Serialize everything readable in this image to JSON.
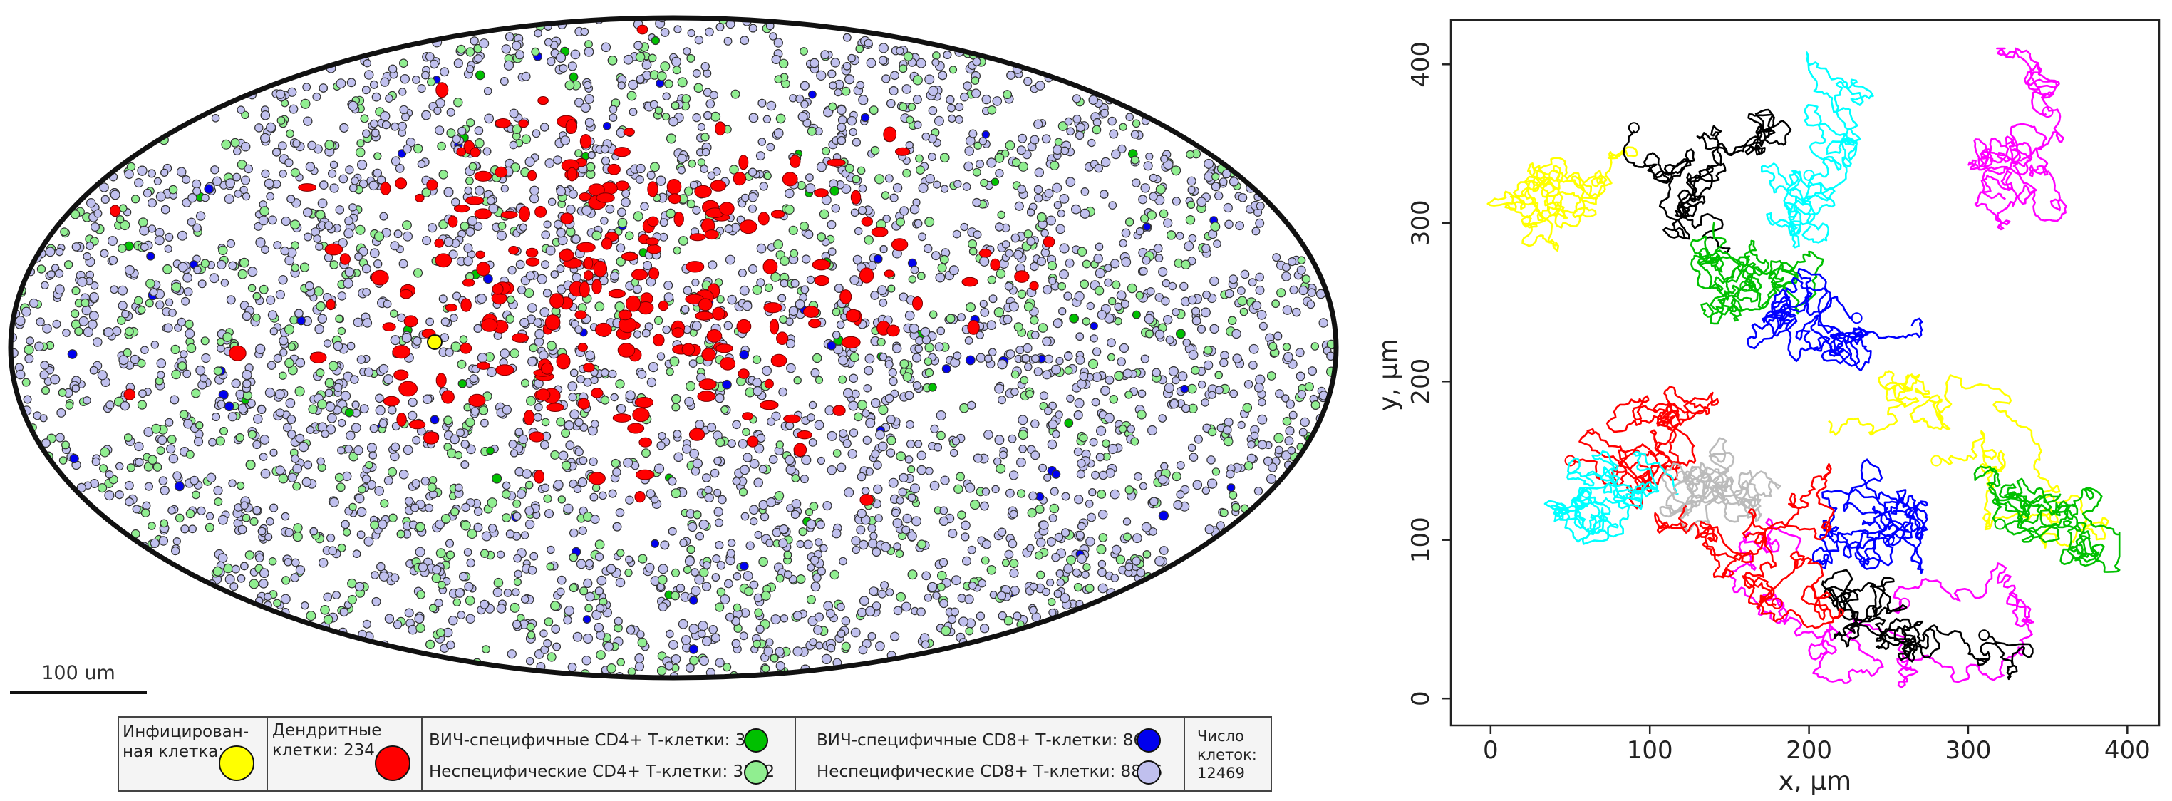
{
  "scale_bar": {
    "label": "100 um"
  },
  "legend": {
    "infected": {
      "label": "Инфицирован-ная клетка:",
      "line1": "Инфицирован-",
      "line2": "ная клетка:",
      "color": "#ffff00"
    },
    "dendritic": {
      "line1": "Дендритные",
      "line2": "клетки: 234",
      "count": 234,
      "color": "#ff0000"
    },
    "cd4_specific": {
      "text": "ВИЧ-специфичные CD4+ Т-клетки: 31",
      "count": 31,
      "color": "#00c000"
    },
    "cd4_nonspecific": {
      "text": "Неспецифические CD4+ Т-клетки: 3272",
      "count": 3272,
      "color": "#90ee90"
    },
    "cd8_specific": {
      "text": "ВИЧ-специфичные CD8+ Т-клетки: 86",
      "count": 86,
      "color": "#0000ee"
    },
    "cd8_nonspecific": {
      "text": "Неспецифические CD8+ Т-клетки: 8846",
      "count": 8846,
      "color": "#c0c0ee"
    },
    "total": {
      "line1": "Число",
      "line2": "клеток:",
      "line3": "12469",
      "count": 12469
    }
  },
  "chart_data": [
    {
      "type": "scatter",
      "title": "",
      "xlabel": "",
      "ylabel": "",
      "note": "Simulated lymph node section (ellipse) with dense population of cells; dendritic cells concentrated in the center, one infected cell on the left-center.",
      "series": [
        {
          "name": "Инфицированная клетка",
          "color": "#ffff00",
          "count": 1
        },
        {
          "name": "Дендритные клетки",
          "color": "#ff0000",
          "count": 234
        },
        {
          "name": "ВИЧ-специфичные CD4+ Т-клетки",
          "color": "#00c000",
          "count": 31
        },
        {
          "name": "Неспецифические CD4+ Т-клетки",
          "color": "#90ee90",
          "count": 3272
        },
        {
          "name": "ВИЧ-специфичные CD8+ Т-клетки",
          "color": "#0000ee",
          "count": 86
        },
        {
          "name": "Неспецифические CD8+ Т-клетки",
          "color": "#c0c0ee",
          "count": 8846
        }
      ]
    },
    {
      "type": "line",
      "title": "",
      "xlabel": "x, µm",
      "ylabel": "y, µm",
      "xlim": [
        -25,
        420
      ],
      "ylim": [
        -17,
        428
      ],
      "xticks": [
        0,
        100,
        200,
        300,
        400
      ],
      "yticks": [
        0,
        100,
        200,
        300,
        400
      ],
      "grid": false,
      "series": [
        {
          "color": "#ffff00",
          "start": [
            40,
            330
          ],
          "center": [
            60,
            320
          ]
        },
        {
          "color": "#000000",
          "start": [
            90,
            360
          ],
          "center": [
            120,
            350
          ]
        },
        {
          "color": "#00ffff",
          "start": [
            200,
            330
          ],
          "center": [
            210,
            340
          ]
        },
        {
          "color": "#00c000",
          "start": [
            160,
            260
          ],
          "center": [
            170,
            250
          ]
        },
        {
          "color": "#0000ff",
          "start": [
            230,
            240
          ],
          "center": [
            220,
            220
          ]
        },
        {
          "color": "#ff00ff",
          "start": [
            350,
            370
          ],
          "center": [
            330,
            330
          ]
        },
        {
          "color": "#ff0000",
          "start": [
            50,
            150
          ],
          "center": [
            100,
            160
          ]
        },
        {
          "color": "#00ffff",
          "start": [
            60,
            130
          ],
          "center": [
            90,
            140
          ]
        },
        {
          "color": "#bbbbbb",
          "start": [
            120,
            140
          ],
          "center": [
            150,
            140
          ]
        },
        {
          "color": "#ffff00",
          "start": [
            280,
            150
          ],
          "center": [
            300,
            140
          ]
        },
        {
          "color": "#ff00ff",
          "start": [
            260,
            60
          ],
          "center": [
            270,
            70
          ]
        },
        {
          "color": "#000000",
          "start": [
            310,
            40
          ],
          "center": [
            270,
            40
          ]
        },
        {
          "color": "#0000ff",
          "start": [
            250,
            100
          ],
          "center": [
            240,
            120
          ]
        },
        {
          "color": "#00c000",
          "start": [
            320,
            110
          ],
          "center": [
            340,
            110
          ]
        },
        {
          "color": "#ff0000",
          "start": [
            180,
            60
          ],
          "center": [
            190,
            80
          ]
        }
      ]
    }
  ]
}
